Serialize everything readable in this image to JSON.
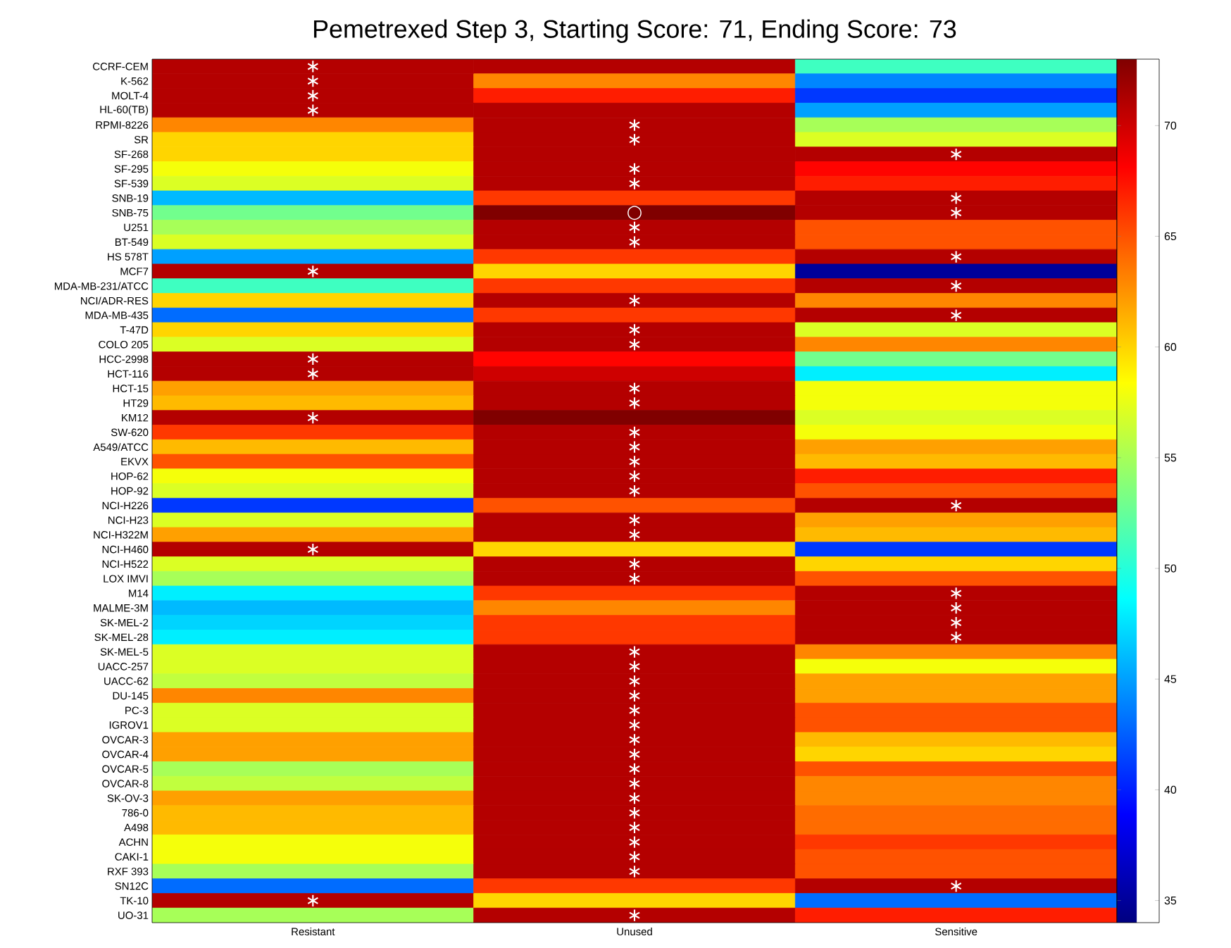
{
  "chart_data": {
    "type": "heatmap",
    "title": "Pemetrexed Step 3, Starting Score: 71, Ending Score: 73",
    "categories": [
      "Resistant",
      "Unused",
      "Sensitive"
    ],
    "y_categories": [
      "CCRF-CEM",
      "K-562",
      "MOLT-4",
      "HL-60(TB)",
      "RPMI-8226",
      "SR",
      "SF-268",
      "SF-295",
      "SF-539",
      "SNB-19",
      "SNB-75",
      "U251",
      "BT-549",
      "HS 578T",
      "MCF7",
      "MDA-MB-231/ATCC",
      "NCI/ADR-RES",
      "MDA-MB-435",
      "T-47D",
      "COLO 205",
      "HCC-2998",
      "HCT-116",
      "HCT-15",
      "HT29",
      "KM12",
      "SW-620",
      "A549/ATCC",
      "EKVX",
      "HOP-62",
      "HOP-92",
      "NCI-H226",
      "NCI-H23",
      "NCI-H322M",
      "NCI-H460",
      "NCI-H522",
      "LOX IMVI",
      "M14",
      "MALME-3M",
      "SK-MEL-2",
      "SK-MEL-28",
      "SK-MEL-5",
      "UACC-257",
      "UACC-62",
      "DU-145",
      "PC-3",
      "IGROV1",
      "OVCAR-3",
      "OVCAR-4",
      "OVCAR-5",
      "OVCAR-8",
      "SK-OV-3",
      "786-0",
      "A498",
      "ACHN",
      "CAKI-1",
      "RXF 393",
      "SN12C",
      "TK-10",
      "UO-31"
    ],
    "cells": [
      [
        71,
        71,
        51
      ],
      [
        71,
        63,
        44
      ],
      [
        71,
        67,
        41
      ],
      [
        71,
        71,
        45
      ],
      [
        63,
        71,
        55
      ],
      [
        60,
        71,
        57
      ],
      [
        60,
        71,
        71
      ],
      [
        58,
        71,
        68
      ],
      [
        57,
        71,
        67
      ],
      [
        46,
        66,
        71
      ],
      [
        53,
        73,
        71
      ],
      [
        55,
        71,
        65
      ],
      [
        57,
        71,
        65
      ],
      [
        45,
        66,
        71
      ],
      [
        71,
        60,
        35
      ],
      [
        51,
        66,
        71
      ],
      [
        60,
        71,
        63
      ],
      [
        43,
        66,
        71
      ],
      [
        60,
        71,
        57
      ],
      [
        57,
        71,
        63
      ],
      [
        71,
        68,
        53
      ],
      [
        71,
        70,
        48
      ],
      [
        62,
        71,
        58
      ],
      [
        61,
        71,
        58
      ],
      [
        71,
        73,
        57
      ],
      [
        66,
        71,
        58
      ],
      [
        61,
        71,
        62
      ],
      [
        65,
        71,
        61
      ],
      [
        58,
        71,
        67
      ],
      [
        57,
        71,
        65
      ],
      [
        41,
        65,
        71
      ],
      [
        57,
        71,
        62
      ],
      [
        62,
        71,
        61
      ],
      [
        71,
        60,
        41
      ],
      [
        57,
        71,
        60
      ],
      [
        55,
        71,
        65
      ],
      [
        48,
        66,
        71
      ],
      [
        46,
        63,
        71
      ],
      [
        47,
        66,
        71
      ],
      [
        48,
        66,
        71
      ],
      [
        57,
        71,
        63
      ],
      [
        57,
        71,
        58
      ],
      [
        56,
        71,
        62
      ],
      [
        63,
        71,
        62
      ],
      [
        57,
        71,
        65
      ],
      [
        57,
        71,
        65
      ],
      [
        62,
        71,
        61
      ],
      [
        62,
        71,
        60
      ],
      [
        55,
        71,
        65
      ],
      [
        56,
        71,
        63
      ],
      [
        62,
        71,
        63
      ],
      [
        61,
        71,
        64
      ],
      [
        61,
        71,
        64
      ],
      [
        58,
        71,
        66
      ],
      [
        58,
        71,
        65
      ],
      [
        55,
        71,
        65
      ],
      [
        43,
        66,
        71
      ],
      [
        71,
        60,
        43
      ],
      [
        55,
        71,
        67
      ]
    ],
    "cell_labels": [
      [
        "∗",
        null,
        null
      ],
      [
        "∗",
        null,
        null
      ],
      [
        "∗",
        null,
        null
      ],
      [
        "∗",
        null,
        null
      ],
      [
        null,
        "∗",
        null
      ],
      [
        null,
        "∗",
        null
      ],
      [
        null,
        null,
        "∗"
      ],
      [
        null,
        "∗",
        null
      ],
      [
        null,
        "∗",
        null
      ],
      [
        null,
        null,
        "∗"
      ],
      [
        null,
        "○",
        "∗"
      ],
      [
        null,
        "∗",
        null
      ],
      [
        null,
        "∗",
        null
      ],
      [
        null,
        null,
        "∗"
      ],
      [
        "∗",
        null,
        null
      ],
      [
        null,
        null,
        "∗"
      ],
      [
        null,
        "∗",
        null
      ],
      [
        null,
        null,
        "∗"
      ],
      [
        null,
        "∗",
        null
      ],
      [
        null,
        "∗",
        null
      ],
      [
        "∗",
        null,
        null
      ],
      [
        "∗",
        null,
        null
      ],
      [
        null,
        "∗",
        null
      ],
      [
        null,
        "∗",
        null
      ],
      [
        "∗",
        null,
        null
      ],
      [
        null,
        "∗",
        null
      ],
      [
        null,
        "∗",
        null
      ],
      [
        null,
        "∗",
        null
      ],
      [
        null,
        "∗",
        null
      ],
      [
        null,
        "∗",
        null
      ],
      [
        null,
        null,
        "∗"
      ],
      [
        null,
        "∗",
        null
      ],
      [
        null,
        "∗",
        null
      ],
      [
        "∗",
        null,
        null
      ],
      [
        null,
        "∗",
        null
      ],
      [
        null,
        "∗",
        null
      ],
      [
        null,
        null,
        "∗"
      ],
      [
        null,
        null,
        "∗"
      ],
      [
        null,
        null,
        "∗"
      ],
      [
        null,
        null,
        "∗"
      ],
      [
        null,
        "∗",
        null
      ],
      [
        null,
        "∗",
        null
      ],
      [
        null,
        "∗",
        null
      ],
      [
        null,
        "∗",
        null
      ],
      [
        null,
        "∗",
        null
      ],
      [
        null,
        "∗",
        null
      ],
      [
        null,
        "∗",
        null
      ],
      [
        null,
        "∗",
        null
      ],
      [
        null,
        "∗",
        null
      ],
      [
        null,
        "∗",
        null
      ],
      [
        null,
        "∗",
        null
      ],
      [
        null,
        "∗",
        null
      ],
      [
        null,
        "∗",
        null
      ],
      [
        null,
        "∗",
        null
      ],
      [
        null,
        "∗",
        null
      ],
      [
        null,
        "∗",
        null
      ],
      [
        null,
        null,
        "∗"
      ],
      [
        "∗",
        null,
        null
      ],
      [
        null,
        "∗",
        null
      ]
    ],
    "clim": [
      34,
      73
    ],
    "cticks": [
      35,
      40,
      45,
      50,
      55,
      60,
      65,
      70
    ]
  }
}
